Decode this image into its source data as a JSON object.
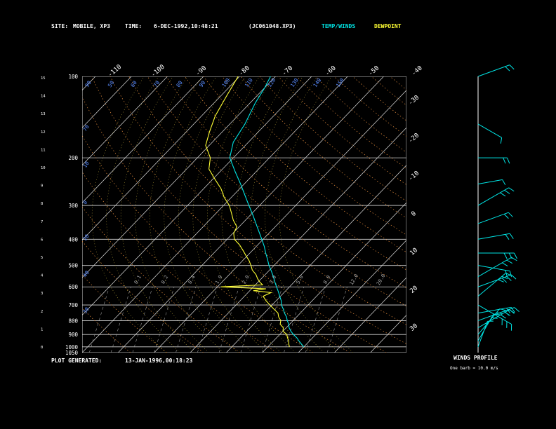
{
  "header": {
    "site_label": "SITE:",
    "site_value": "MOBILE, XP3",
    "time_label": "TIME:",
    "time_value": "6-DEC-1992,10:48:21",
    "file_id": "(JC061048.XP3)",
    "temp_legend": "TEMP/WINDS",
    "dew_legend": "DEWPOINT",
    "temp_color": "#00e5e5",
    "dew_color": "#ffff33"
  },
  "footer": {
    "generated_label": "PLOT GENERATED:",
    "generated_value": "13-JAN-1996,00:18:23",
    "wind_title": "WINDS PROFILE",
    "wind_scale": "One barb = 10.0 m/s"
  },
  "chart_data": {
    "type": "line",
    "pressure_levels": [
      1050,
      1000,
      900,
      800,
      700,
      600,
      500,
      400,
      300,
      200,
      100
    ],
    "pressure_labels": [
      "1050",
      "1000",
      "900",
      "800",
      "700",
      "600",
      "500",
      "400",
      "300",
      "200",
      "100"
    ],
    "height_km_labels": [
      "0",
      "1",
      "2",
      "3",
      "4",
      "5",
      "6",
      "7",
      "8",
      "9",
      "10",
      "11",
      "12",
      "13",
      "14",
      "15"
    ],
    "isotherm_top_labels": [
      "-110",
      "-100",
      "-90",
      "-80",
      "-70",
      "-60",
      "-50",
      "-40"
    ],
    "isotherm_right_labels": [
      "-30",
      "-20",
      "-10",
      "0",
      "10",
      "20",
      "30"
    ],
    "mixing_ratio_labels": [
      "0.1",
      "0.2",
      "0.4",
      "1.0",
      "2.0",
      "3.0",
      "5.0",
      "8.0",
      "12.0",
      "20.0"
    ],
    "theta_top_labels": [
      "90",
      "50",
      "60",
      "70",
      "80",
      "90",
      "100",
      "110",
      "120",
      "130",
      "140",
      "150"
    ],
    "theta_left_labels": [
      "70",
      "10",
      "0",
      "20",
      "40",
      "30"
    ],
    "series": [
      {
        "name": "TEMP/WINDS",
        "points": [
          [
            1000,
            20
          ],
          [
            975,
            18.5
          ],
          [
            950,
            17
          ],
          [
            925,
            15.6
          ],
          [
            900,
            13.8
          ],
          [
            875,
            12.2
          ],
          [
            850,
            10.8
          ],
          [
            825,
            9.8
          ],
          [
            800,
            8.4
          ],
          [
            775,
            7.2
          ],
          [
            750,
            5.6
          ],
          [
            725,
            4.2
          ],
          [
            700,
            2.6
          ],
          [
            675,
            1.4
          ],
          [
            650,
            -0.2
          ],
          [
            625,
            -1.8
          ],
          [
            600,
            -3.6
          ],
          [
            575,
            -5.4
          ],
          [
            550,
            -7.2
          ],
          [
            525,
            -9.2
          ],
          [
            500,
            -11.4
          ],
          [
            475,
            -13.4
          ],
          [
            450,
            -15.6
          ],
          [
            425,
            -17.8
          ],
          [
            400,
            -20.4
          ],
          [
            375,
            -23.2
          ],
          [
            350,
            -26.2
          ],
          [
            325,
            -29.4
          ],
          [
            300,
            -33
          ],
          [
            275,
            -36.8
          ],
          [
            250,
            -41
          ],
          [
            225,
            -45.8
          ],
          [
            200,
            -51
          ],
          [
            175,
            -54.2
          ],
          [
            150,
            -55.8
          ],
          [
            125,
            -58.6
          ],
          [
            110,
            -60
          ],
          [
            100,
            -61.4
          ]
        ]
      },
      {
        "name": "DEWPOINT",
        "points": [
          [
            1000,
            16
          ],
          [
            975,
            15
          ],
          [
            950,
            14.2
          ],
          [
            925,
            13
          ],
          [
            900,
            12
          ],
          [
            875,
            10
          ],
          [
            850,
            9.2
          ],
          [
            825,
            7.4
          ],
          [
            800,
            6.6
          ],
          [
            775,
            5
          ],
          [
            750,
            3.8
          ],
          [
            725,
            1.6
          ],
          [
            700,
            -0.6
          ],
          [
            675,
            -2.8
          ],
          [
            650,
            -4.8
          ],
          [
            630,
            -3.6
          ],
          [
            620,
            -9
          ],
          [
            610,
            -6
          ],
          [
            600,
            -19
          ],
          [
            590,
            -8
          ],
          [
            575,
            -9.6
          ],
          [
            560,
            -11
          ],
          [
            540,
            -12.6
          ],
          [
            520,
            -14.8
          ],
          [
            500,
            -16.4
          ],
          [
            480,
            -18.2
          ],
          [
            460,
            -20.4
          ],
          [
            440,
            -22.6
          ],
          [
            420,
            -25
          ],
          [
            400,
            -28
          ],
          [
            380,
            -29.8
          ],
          [
            360,
            -30.6
          ],
          [
            340,
            -33.4
          ],
          [
            320,
            -35.8
          ],
          [
            300,
            -38.4
          ],
          [
            280,
            -42
          ],
          [
            260,
            -45.2
          ],
          [
            240,
            -49.4
          ],
          [
            220,
            -53.8
          ],
          [
            200,
            -56.4
          ],
          [
            180,
            -61
          ],
          [
            160,
            -63.6
          ],
          [
            140,
            -66.2
          ],
          [
            120,
            -68.2
          ],
          [
            100,
            -70.4
          ]
        ]
      }
    ],
    "winds": [
      {
        "p": 100,
        "dir": 250,
        "spd": 22
      },
      {
        "p": 150,
        "dir": 300,
        "spd": 12
      },
      {
        "p": 200,
        "dir": 270,
        "spd": 15
      },
      {
        "p": 250,
        "dir": 260,
        "spd": 8
      },
      {
        "p": 300,
        "dir": 240,
        "spd": 25
      },
      {
        "p": 350,
        "dir": 250,
        "spd": 20
      },
      {
        "p": 400,
        "dir": 260,
        "spd": 20
      },
      {
        "p": 450,
        "dir": 270,
        "spd": 26
      },
      {
        "p": 500,
        "dir": 280,
        "spd": 20
      },
      {
        "p": 550,
        "dir": 240,
        "spd": 30
      },
      {
        "p": 600,
        "dir": 250,
        "spd": 25
      },
      {
        "p": 650,
        "dir": 230,
        "spd": 26
      },
      {
        "p": 700,
        "dir": 300,
        "spd": 30
      },
      {
        "p": 750,
        "dir": 260,
        "spd": 22
      },
      {
        "p": 800,
        "dir": 250,
        "spd": 30
      },
      {
        "p": 850,
        "dir": 240,
        "spd": 26
      },
      {
        "p": 900,
        "dir": 220,
        "spd": 22
      },
      {
        "p": 950,
        "dir": 210,
        "spd": 18
      },
      {
        "p": 1000,
        "dir": 200,
        "spd": 12
      }
    ],
    "xlim_temp_c": [
      -40,
      50
    ],
    "ylim_pressure_hpa": [
      1050,
      100
    ],
    "yscale": "log",
    "grid": true,
    "legend": "top"
  }
}
